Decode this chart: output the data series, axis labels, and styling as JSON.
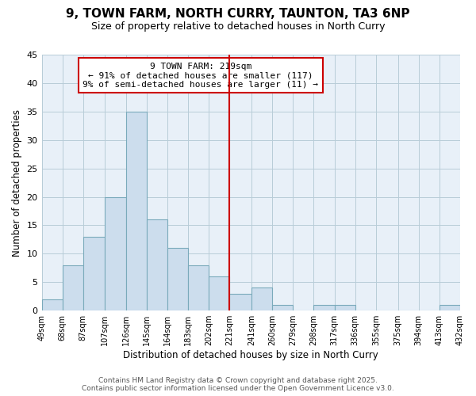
{
  "title": "9, TOWN FARM, NORTH CURRY, TAUNTON, TA3 6NP",
  "subtitle": "Size of property relative to detached houses in North Curry",
  "xlabel": "Distribution of detached houses by size in North Curry",
  "ylabel": "Number of detached properties",
  "bar_color": "#ccdded",
  "bar_edge_color": "#7aaabb",
  "plot_bg_color": "#e8f0f8",
  "fig_bg_color": "#ffffff",
  "grid_color": "#b8ccd8",
  "bins": [
    49,
    68,
    87,
    107,
    126,
    145,
    164,
    183,
    202,
    221,
    241,
    260,
    279,
    298,
    317,
    336,
    355,
    375,
    394,
    413,
    432
  ],
  "counts": [
    2,
    8,
    13,
    20,
    35,
    16,
    11,
    8,
    6,
    3,
    4,
    1,
    0,
    1,
    1,
    0,
    0,
    0,
    0,
    1
  ],
  "tick_labels": [
    "49sqm",
    "68sqm",
    "87sqm",
    "107sqm",
    "126sqm",
    "145sqm",
    "164sqm",
    "183sqm",
    "202sqm",
    "221sqm",
    "241sqm",
    "260sqm",
    "279sqm",
    "298sqm",
    "317sqm",
    "336sqm",
    "355sqm",
    "375sqm",
    "394sqm",
    "413sqm",
    "432sqm"
  ],
  "vline_x": 221,
  "vline_color": "#cc0000",
  "annotation_title": "9 TOWN FARM: 219sqm",
  "annotation_line1": "← 91% of detached houses are smaller (117)",
  "annotation_line2": "9% of semi-detached houses are larger (11) →",
  "annotation_box_color": "#ffffff",
  "annotation_box_edge": "#cc0000",
  "ylim": [
    0,
    45
  ],
  "yticks": [
    0,
    5,
    10,
    15,
    20,
    25,
    30,
    35,
    40,
    45
  ],
  "footer_line1": "Contains HM Land Registry data © Crown copyright and database right 2025.",
  "footer_line2": "Contains public sector information licensed under the Open Government Licence v3.0.",
  "title_fontsize": 11,
  "subtitle_fontsize": 9,
  "axis_label_fontsize": 8.5,
  "tick_fontsize": 7,
  "annotation_fontsize": 8,
  "footer_fontsize": 6.5
}
